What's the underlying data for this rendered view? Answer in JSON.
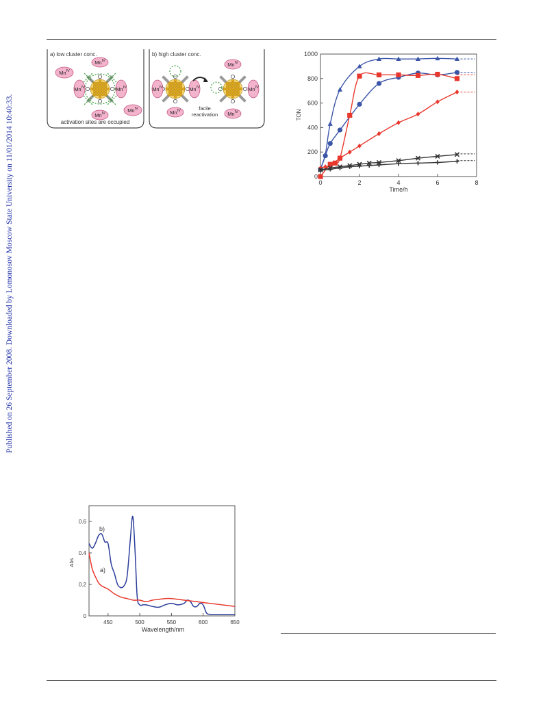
{
  "sidebar": {
    "watermark": "Published on 26 September 2008. Downloaded by Lomonosov Moscow State University on 11/01/2014 10:40:33."
  },
  "scheme": {
    "panel_a": {
      "title": "a) low cluster conc.",
      "caption": "activation sites are occupied",
      "ion_label": "Mn",
      "ion_sup": "IV"
    },
    "panel_b": {
      "title": "b) high cluster conc.",
      "caption_line1": "facile",
      "caption_line2": "reactivation",
      "ion_label": "Mn",
      "ion_sup": "IV"
    },
    "colors": {
      "ion_fill": "#f4b3cc",
      "ion_stroke": "#c2557f",
      "cluster": "#e3ac1f",
      "dashed": "#3a9a3a"
    }
  },
  "chart_data": [
    {
      "type": "scatter",
      "xlabel": "Time/h",
      "ylabel": "TON",
      "xlim": [
        0,
        8
      ],
      "ylim": [
        0,
        1000
      ],
      "xticks": [
        "0",
        "2",
        "4",
        "6",
        "8"
      ],
      "yticks": [
        "0",
        "200",
        "400",
        "600",
        "800",
        "1000"
      ],
      "grid": false,
      "series": [
        {
          "marker": "triangle",
          "color": "#3b55a8",
          "x": [
            0,
            0.25,
            0.5,
            1,
            2,
            3,
            4,
            5,
            6,
            7
          ],
          "y": [
            60,
            180,
            430,
            710,
            900,
            960,
            960,
            960,
            965,
            960
          ],
          "plateau": 960
        },
        {
          "marker": "circle",
          "color": "#3b55a8",
          "x": [
            0,
            0.25,
            0.5,
            1,
            2,
            3,
            4,
            5,
            6,
            7
          ],
          "y": [
            60,
            170,
            270,
            380,
            590,
            760,
            810,
            845,
            830,
            850
          ],
          "plateau": 850
        },
        {
          "marker": "square",
          "color": "#e8382d",
          "x": [
            0,
            0.5,
            0.75,
            1,
            1.5,
            2,
            3,
            4,
            5,
            6,
            7
          ],
          "y": [
            0,
            100,
            110,
            150,
            500,
            820,
            830,
            830,
            825,
            835,
            800
          ],
          "plateau": 830
        },
        {
          "marker": "diamond",
          "color": "#e8382d",
          "x": [
            0,
            0.25,
            0.5,
            1,
            1.5,
            2,
            3,
            4,
            5,
            6,
            7
          ],
          "y": [
            70,
            80,
            90,
            150,
            200,
            250,
            350,
            440,
            510,
            610,
            690
          ],
          "plateau": 690
        },
        {
          "marker": "cross",
          "color": "#333333",
          "x": [
            0,
            0.5,
            1,
            1.5,
            2,
            2.5,
            3,
            4,
            5,
            6,
            7
          ],
          "y": [
            55,
            70,
            80,
            90,
            100,
            110,
            115,
            130,
            150,
            165,
            180
          ],
          "plateau": 185
        },
        {
          "marker": "plus",
          "color": "#333333",
          "x": [
            0,
            0.5,
            1,
            1.5,
            2,
            2.5,
            3,
            4,
            5,
            6,
            7
          ],
          "y": [
            50,
            60,
            70,
            80,
            85,
            90,
            95,
            105,
            110,
            115,
            125
          ],
          "plateau": 130
        }
      ]
    },
    {
      "type": "line",
      "xlabel": "Wavelength/nm",
      "ylabel": "Abs",
      "xlim": [
        420,
        650
      ],
      "ylim": [
        0,
        0.7
      ],
      "xticks": [
        "450",
        "500",
        "550",
        "600",
        "650"
      ],
      "yticks": [
        "0",
        "0.2",
        "0.4",
        "0.6"
      ],
      "grid": false,
      "series": [
        {
          "name": "b)",
          "color": "#2b3d9a",
          "x": [
            420,
            425,
            430,
            435,
            440,
            445,
            450,
            455,
            460,
            465,
            470,
            475,
            480,
            485,
            488,
            490,
            493,
            496,
            500,
            505,
            510,
            520,
            530,
            540,
            550,
            560,
            570,
            575,
            580,
            585,
            590,
            595,
            600,
            605,
            610,
            620,
            630,
            640,
            650
          ],
          "y": [
            0.46,
            0.43,
            0.46,
            0.51,
            0.52,
            0.47,
            0.46,
            0.33,
            0.27,
            0.2,
            0.18,
            0.19,
            0.25,
            0.48,
            0.62,
            0.6,
            0.38,
            0.12,
            0.07,
            0.07,
            0.07,
            0.06,
            0.055,
            0.07,
            0.08,
            0.07,
            0.08,
            0.1,
            0.09,
            0.06,
            0.06,
            0.08,
            0.07,
            0.02,
            0.01,
            0.01,
            0.01,
            0.01,
            0.01
          ]
        },
        {
          "name": "a)",
          "color": "#e8382d",
          "x": [
            420,
            425,
            430,
            435,
            440,
            450,
            460,
            470,
            480,
            490,
            500,
            510,
            520,
            530,
            540,
            550,
            560,
            570,
            580,
            590,
            600,
            620,
            640,
            650
          ],
          "y": [
            0.4,
            0.3,
            0.25,
            0.21,
            0.19,
            0.17,
            0.14,
            0.12,
            0.11,
            0.1,
            0.1,
            0.09,
            0.1,
            0.105,
            0.11,
            0.11,
            0.105,
            0.1,
            0.095,
            0.09,
            0.085,
            0.075,
            0.065,
            0.06
          ]
        }
      ]
    }
  ]
}
